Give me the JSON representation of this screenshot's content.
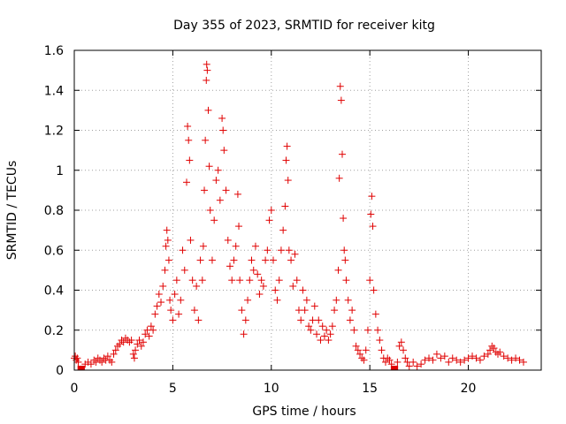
{
  "chart_data": {
    "type": "scatter",
    "title": "Day 355 of 2023, SRMTID for receiver kitg",
    "xlabel": "GPS time / hours",
    "ylabel": "SRMTID / TECUs",
    "xlim": [
      0,
      23.7
    ],
    "ylim": [
      0,
      1.6
    ],
    "xticks": [
      0,
      5,
      10,
      15,
      20
    ],
    "xtick_labels": [
      "0",
      "5",
      "10",
      "15",
      "20"
    ],
    "yticks": [
      0,
      0.2,
      0.4,
      0.6,
      0.8,
      1.0,
      1.2,
      1.4,
      1.6
    ],
    "ytick_labels": [
      "0",
      "0.2",
      "0.4",
      "0.6",
      "0.8",
      "1",
      "1.2",
      "1.4",
      "1.6"
    ],
    "grid": true,
    "marker": "+",
    "marker_color": "#e00000",
    "series": [
      {
        "name": "SRMTID",
        "points": [
          [
            0.0,
            0.06
          ],
          [
            0.05,
            0.07
          ],
          [
            0.1,
            0.05
          ],
          [
            0.15,
            0.06
          ],
          [
            0.2,
            0.04
          ],
          [
            0.3,
            0.0
          ],
          [
            0.4,
            0.0
          ],
          [
            0.55,
            0.03
          ],
          [
            0.7,
            0.04
          ],
          [
            0.85,
            0.03
          ],
          [
            1.0,
            0.05
          ],
          [
            1.1,
            0.04
          ],
          [
            1.2,
            0.06
          ],
          [
            1.3,
            0.05
          ],
          [
            1.4,
            0.04
          ],
          [
            1.5,
            0.06
          ],
          [
            1.6,
            0.05
          ],
          [
            1.7,
            0.07
          ],
          [
            1.8,
            0.05
          ],
          [
            1.9,
            0.04
          ],
          [
            2.0,
            0.08
          ],
          [
            2.1,
            0.1
          ],
          [
            2.2,
            0.12
          ],
          [
            2.3,
            0.13
          ],
          [
            2.4,
            0.15
          ],
          [
            2.5,
            0.14
          ],
          [
            2.6,
            0.16
          ],
          [
            2.7,
            0.15
          ],
          [
            2.8,
            0.14
          ],
          [
            2.9,
            0.15
          ],
          [
            3.0,
            0.08
          ],
          [
            3.05,
            0.06
          ],
          [
            3.1,
            0.1
          ],
          [
            3.2,
            0.13
          ],
          [
            3.3,
            0.15
          ],
          [
            3.4,
            0.12
          ],
          [
            3.5,
            0.14
          ],
          [
            3.6,
            0.18
          ],
          [
            3.7,
            0.2
          ],
          [
            3.8,
            0.17
          ],
          [
            3.9,
            0.22
          ],
          [
            4.0,
            0.2
          ],
          [
            4.1,
            0.28
          ],
          [
            4.2,
            0.32
          ],
          [
            4.3,
            0.38
          ],
          [
            4.4,
            0.34
          ],
          [
            4.5,
            0.42
          ],
          [
            4.6,
            0.5
          ],
          [
            4.65,
            0.62
          ],
          [
            4.7,
            0.7
          ],
          [
            4.75,
            0.65
          ],
          [
            4.8,
            0.55
          ],
          [
            4.85,
            0.35
          ],
          [
            4.9,
            0.3
          ],
          [
            5.0,
            0.25
          ],
          [
            5.1,
            0.38
          ],
          [
            5.2,
            0.45
          ],
          [
            5.3,
            0.28
          ],
          [
            5.4,
            0.35
          ],
          [
            5.5,
            0.6
          ],
          [
            5.6,
            0.5
          ],
          [
            5.7,
            0.94
          ],
          [
            5.75,
            1.22
          ],
          [
            5.8,
            1.15
          ],
          [
            5.85,
            1.05
          ],
          [
            5.9,
            0.65
          ],
          [
            6.0,
            0.45
          ],
          [
            6.1,
            0.3
          ],
          [
            6.2,
            0.42
          ],
          [
            6.3,
            0.25
          ],
          [
            6.4,
            0.55
          ],
          [
            6.5,
            0.45
          ],
          [
            6.55,
            0.62
          ],
          [
            6.6,
            0.9
          ],
          [
            6.65,
            1.15
          ],
          [
            6.7,
            1.45
          ],
          [
            6.72,
            1.53
          ],
          [
            6.75,
            1.5
          ],
          [
            6.8,
            1.3
          ],
          [
            6.85,
            1.02
          ],
          [
            6.9,
            0.8
          ],
          [
            7.0,
            0.55
          ],
          [
            7.1,
            0.75
          ],
          [
            7.2,
            0.95
          ],
          [
            7.3,
            1.0
          ],
          [
            7.4,
            0.85
          ],
          [
            7.5,
            1.26
          ],
          [
            7.55,
            1.2
          ],
          [
            7.6,
            1.1
          ],
          [
            7.7,
            0.9
          ],
          [
            7.8,
            0.65
          ],
          [
            7.9,
            0.52
          ],
          [
            8.0,
            0.45
          ],
          [
            8.1,
            0.55
          ],
          [
            8.2,
            0.62
          ],
          [
            8.3,
            0.88
          ],
          [
            8.35,
            0.72
          ],
          [
            8.4,
            0.45
          ],
          [
            8.5,
            0.3
          ],
          [
            8.6,
            0.18
          ],
          [
            8.7,
            0.25
          ],
          [
            8.8,
            0.35
          ],
          [
            8.9,
            0.45
          ],
          [
            9.0,
            0.55
          ],
          [
            9.1,
            0.5
          ],
          [
            9.2,
            0.62
          ],
          [
            9.3,
            0.48
          ],
          [
            9.4,
            0.38
          ],
          [
            9.5,
            0.45
          ],
          [
            9.6,
            0.42
          ],
          [
            9.7,
            0.55
          ],
          [
            9.8,
            0.6
          ],
          [
            9.9,
            0.75
          ],
          [
            10.0,
            0.8
          ],
          [
            10.1,
            0.55
          ],
          [
            10.2,
            0.4
          ],
          [
            10.3,
            0.35
          ],
          [
            10.4,
            0.45
          ],
          [
            10.5,
            0.6
          ],
          [
            10.6,
            0.7
          ],
          [
            10.7,
            0.82
          ],
          [
            10.75,
            1.05
          ],
          [
            10.8,
            1.12
          ],
          [
            10.85,
            0.95
          ],
          [
            10.9,
            0.6
          ],
          [
            11.0,
            0.55
          ],
          [
            11.1,
            0.42
          ],
          [
            11.2,
            0.58
          ],
          [
            11.3,
            0.45
          ],
          [
            11.4,
            0.3
          ],
          [
            11.5,
            0.25
          ],
          [
            11.6,
            0.4
          ],
          [
            11.7,
            0.3
          ],
          [
            11.8,
            0.35
          ],
          [
            11.9,
            0.22
          ],
          [
            12.0,
            0.2
          ],
          [
            12.1,
            0.25
          ],
          [
            12.2,
            0.32
          ],
          [
            12.3,
            0.18
          ],
          [
            12.4,
            0.25
          ],
          [
            12.5,
            0.15
          ],
          [
            12.6,
            0.22
          ],
          [
            12.7,
            0.17
          ],
          [
            12.8,
            0.2
          ],
          [
            12.9,
            0.15
          ],
          [
            13.0,
            0.18
          ],
          [
            13.1,
            0.22
          ],
          [
            13.2,
            0.3
          ],
          [
            13.3,
            0.35
          ],
          [
            13.4,
            0.5
          ],
          [
            13.45,
            0.96
          ],
          [
            13.5,
            1.42
          ],
          [
            13.55,
            1.35
          ],
          [
            13.6,
            1.08
          ],
          [
            13.65,
            0.76
          ],
          [
            13.7,
            0.6
          ],
          [
            13.75,
            0.55
          ],
          [
            13.8,
            0.45
          ],
          [
            13.9,
            0.35
          ],
          [
            14.0,
            0.25
          ],
          [
            14.1,
            0.3
          ],
          [
            14.2,
            0.2
          ],
          [
            14.3,
            0.12
          ],
          [
            14.4,
            0.1
          ],
          [
            14.5,
            0.08
          ],
          [
            14.6,
            0.06
          ],
          [
            14.7,
            0.05
          ],
          [
            14.8,
            0.1
          ],
          [
            14.9,
            0.2
          ],
          [
            15.0,
            0.45
          ],
          [
            15.05,
            0.78
          ],
          [
            15.1,
            0.87
          ],
          [
            15.15,
            0.72
          ],
          [
            15.2,
            0.4
          ],
          [
            15.3,
            0.28
          ],
          [
            15.4,
            0.2
          ],
          [
            15.5,
            0.15
          ],
          [
            15.6,
            0.1
          ],
          [
            15.7,
            0.06
          ],
          [
            15.8,
            0.04
          ],
          [
            15.9,
            0.06
          ],
          [
            16.0,
            0.05
          ],
          [
            16.1,
            0.03
          ],
          [
            16.2,
            0.0
          ],
          [
            16.3,
            0.0
          ],
          [
            16.4,
            0.04
          ],
          [
            16.5,
            0.12
          ],
          [
            16.6,
            0.14
          ],
          [
            16.7,
            0.1
          ],
          [
            16.8,
            0.06
          ],
          [
            16.9,
            0.04
          ],
          [
            17.0,
            0.02
          ],
          [
            17.2,
            0.04
          ],
          [
            17.4,
            0.02
          ],
          [
            17.6,
            0.03
          ],
          [
            17.8,
            0.05
          ],
          [
            18.0,
            0.06
          ],
          [
            18.2,
            0.05
          ],
          [
            18.4,
            0.08
          ],
          [
            18.6,
            0.06
          ],
          [
            18.8,
            0.07
          ],
          [
            19.0,
            0.04
          ],
          [
            19.2,
            0.06
          ],
          [
            19.4,
            0.05
          ],
          [
            19.6,
            0.04
          ],
          [
            19.8,
            0.05
          ],
          [
            20.0,
            0.06
          ],
          [
            20.2,
            0.07
          ],
          [
            20.4,
            0.06
          ],
          [
            20.6,
            0.05
          ],
          [
            20.8,
            0.07
          ],
          [
            21.0,
            0.08
          ],
          [
            21.1,
            0.1
          ],
          [
            21.2,
            0.12
          ],
          [
            21.3,
            0.11
          ],
          [
            21.4,
            0.09
          ],
          [
            21.5,
            0.08
          ],
          [
            21.6,
            0.09
          ],
          [
            21.8,
            0.07
          ],
          [
            22.0,
            0.06
          ],
          [
            22.2,
            0.05
          ],
          [
            22.4,
            0.06
          ],
          [
            22.6,
            0.05
          ],
          [
            22.8,
            0.04
          ]
        ]
      }
    ]
  }
}
